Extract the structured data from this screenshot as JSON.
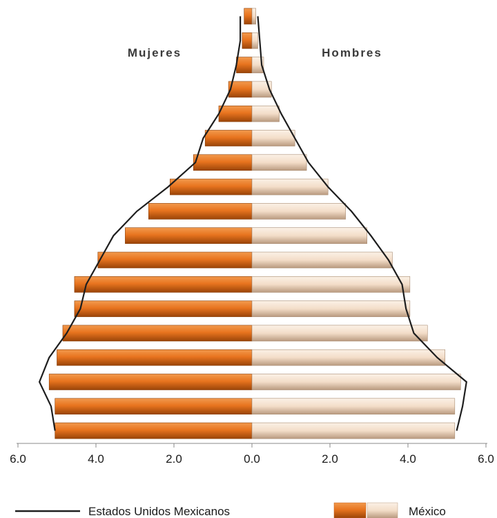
{
  "chart_data": {
    "type": "bar",
    "subtype": "population-pyramid",
    "left_label": "Mujeres",
    "right_label": "Hombres",
    "x_ticks_left": [
      "6.0",
      "4.0",
      "2.0"
    ],
    "x_ticks_center": "0.0",
    "x_ticks_right": [
      "2.0",
      "4.0",
      "6.0"
    ],
    "xlim": [
      -6,
      6
    ],
    "age_groups_top_to_bottom": 18,
    "series": [
      {
        "name": "México",
        "mujeres": [
          0.2,
          0.25,
          0.4,
          0.6,
          0.85,
          1.2,
          1.5,
          2.1,
          2.65,
          3.25,
          3.95,
          4.55,
          4.55,
          4.85,
          5.0,
          5.2,
          5.05,
          5.05
        ],
        "hombres": [
          0.1,
          0.15,
          0.3,
          0.5,
          0.7,
          1.1,
          1.4,
          1.95,
          2.4,
          2.95,
          3.6,
          4.05,
          4.05,
          4.5,
          4.95,
          5.35,
          5.2,
          5.2
        ]
      },
      {
        "name": "Estados Unidos Mexicanos",
        "mujeres": [
          0.3,
          0.3,
          0.4,
          0.55,
          0.85,
          1.25,
          1.45,
          2.15,
          2.95,
          3.55,
          3.9,
          4.25,
          4.4,
          4.75,
          5.2,
          5.45,
          5.15,
          5.05
        ],
        "hombres": [
          0.15,
          0.2,
          0.25,
          0.45,
          0.75,
          1.1,
          1.45,
          1.95,
          2.55,
          3.05,
          3.5,
          3.85,
          3.95,
          4.15,
          4.75,
          5.5,
          5.4,
          5.25
        ]
      }
    ]
  },
  "legend": {
    "line_label": "Estados Unidos Mexicanos",
    "bar_label": "México"
  },
  "colors": {
    "female_bar": "#e8741f",
    "male_bar": "#f3ddc8",
    "line": "#1e1e1e"
  }
}
